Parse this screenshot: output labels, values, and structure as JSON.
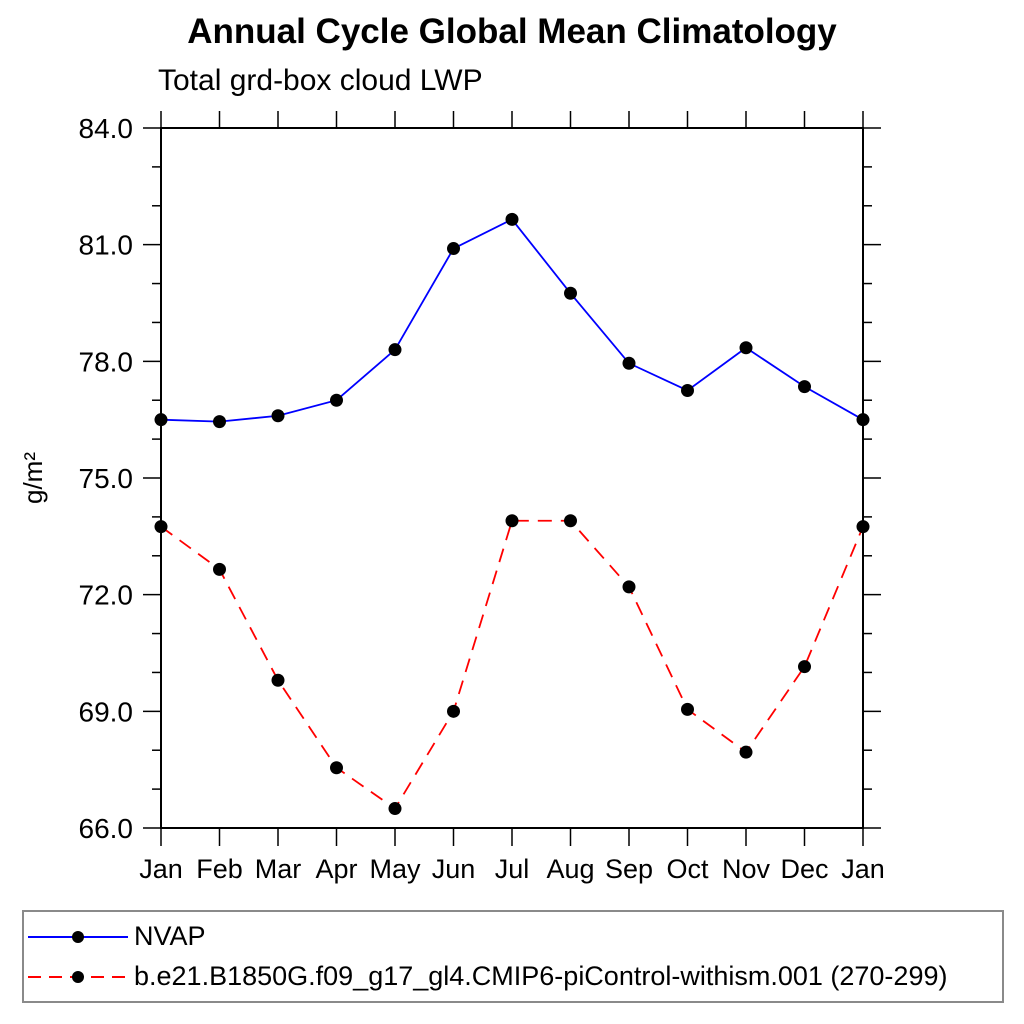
{
  "title": "Annual Cycle Global Mean Climatology",
  "subtitle": "Total grd-box cloud LWP",
  "chart_data": {
    "type": "line",
    "categories": [
      "Jan",
      "Feb",
      "Mar",
      "Apr",
      "May",
      "Jun",
      "Jul",
      "Aug",
      "Sep",
      "Oct",
      "Nov",
      "Dec",
      "Jan"
    ],
    "ylabel": "g/m²",
    "ylim": [
      66.0,
      84.0
    ],
    "y_major_ticks": [
      66,
      69,
      72,
      75,
      78,
      81,
      84
    ],
    "y_tick_labels": [
      "66.0",
      "69.0",
      "72.0",
      "75.0",
      "78.0",
      "81.0",
      "84.0"
    ],
    "y_minor_step": 1,
    "grid": false,
    "legend_position": "bottom",
    "frame_color": "#000000",
    "marker": {
      "shape": "circle",
      "color": "#000000"
    },
    "series": [
      {
        "name": "NVAP",
        "color": "#0000ff",
        "line_style": "solid",
        "values": [
          76.5,
          76.45,
          76.6,
          77.0,
          78.3,
          80.9,
          81.65,
          79.75,
          77.95,
          77.25,
          78.35,
          77.35,
          76.5
        ]
      },
      {
        "name": "b.e21.B1850G.f09_g17_gl4.CMIP6-piControl-withism.001 (270-299)",
        "color": "#ff0000",
        "line_style": "dashed",
        "values": [
          73.75,
          72.65,
          69.8,
          67.55,
          66.5,
          69.0,
          73.9,
          73.9,
          72.2,
          69.05,
          67.95,
          70.15,
          73.75
        ]
      }
    ]
  }
}
